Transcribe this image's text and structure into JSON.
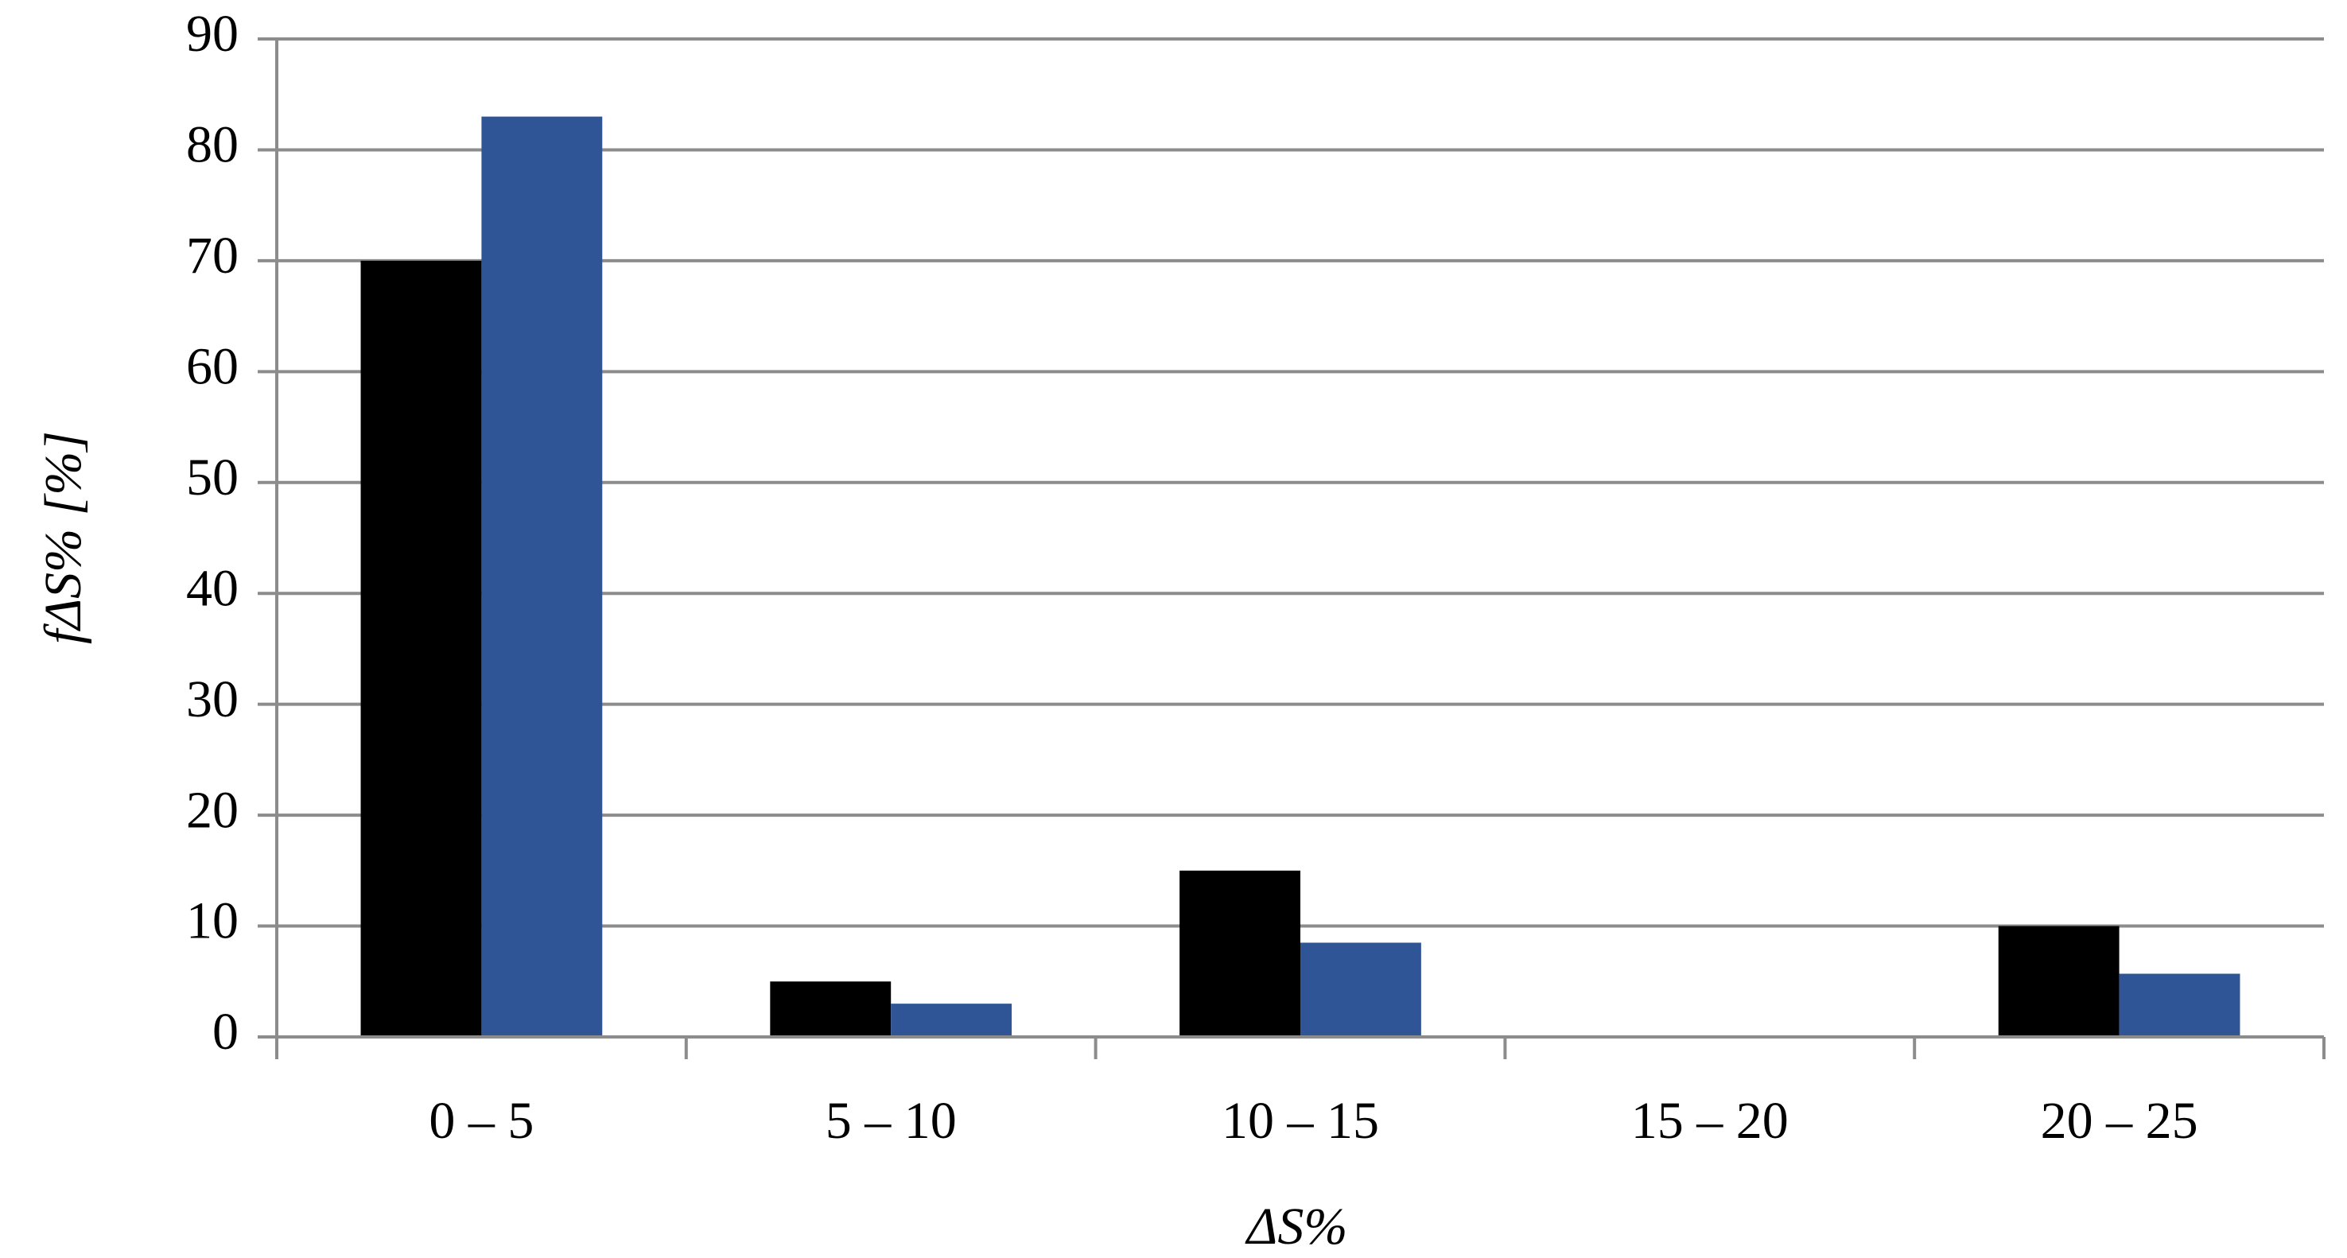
{
  "chart_data": {
    "type": "bar",
    "x_label": "ΔS%",
    "y_label": "fΔS% [%]",
    "categories": [
      "0 – 5",
      "5 – 10",
      "10 – 15",
      "15 – 20",
      "20 – 25"
    ],
    "series": [
      {
        "color": "#000000",
        "values": [
          70,
          5,
          15,
          0,
          10
        ]
      },
      {
        "color": "#2f5597",
        "values": [
          83,
          3,
          8.5,
          0,
          5.7
        ]
      }
    ],
    "ylim": [
      0,
      90
    ],
    "yticks": [
      0,
      10,
      20,
      30,
      40,
      50,
      60,
      70,
      80,
      90
    ],
    "grid": true
  }
}
